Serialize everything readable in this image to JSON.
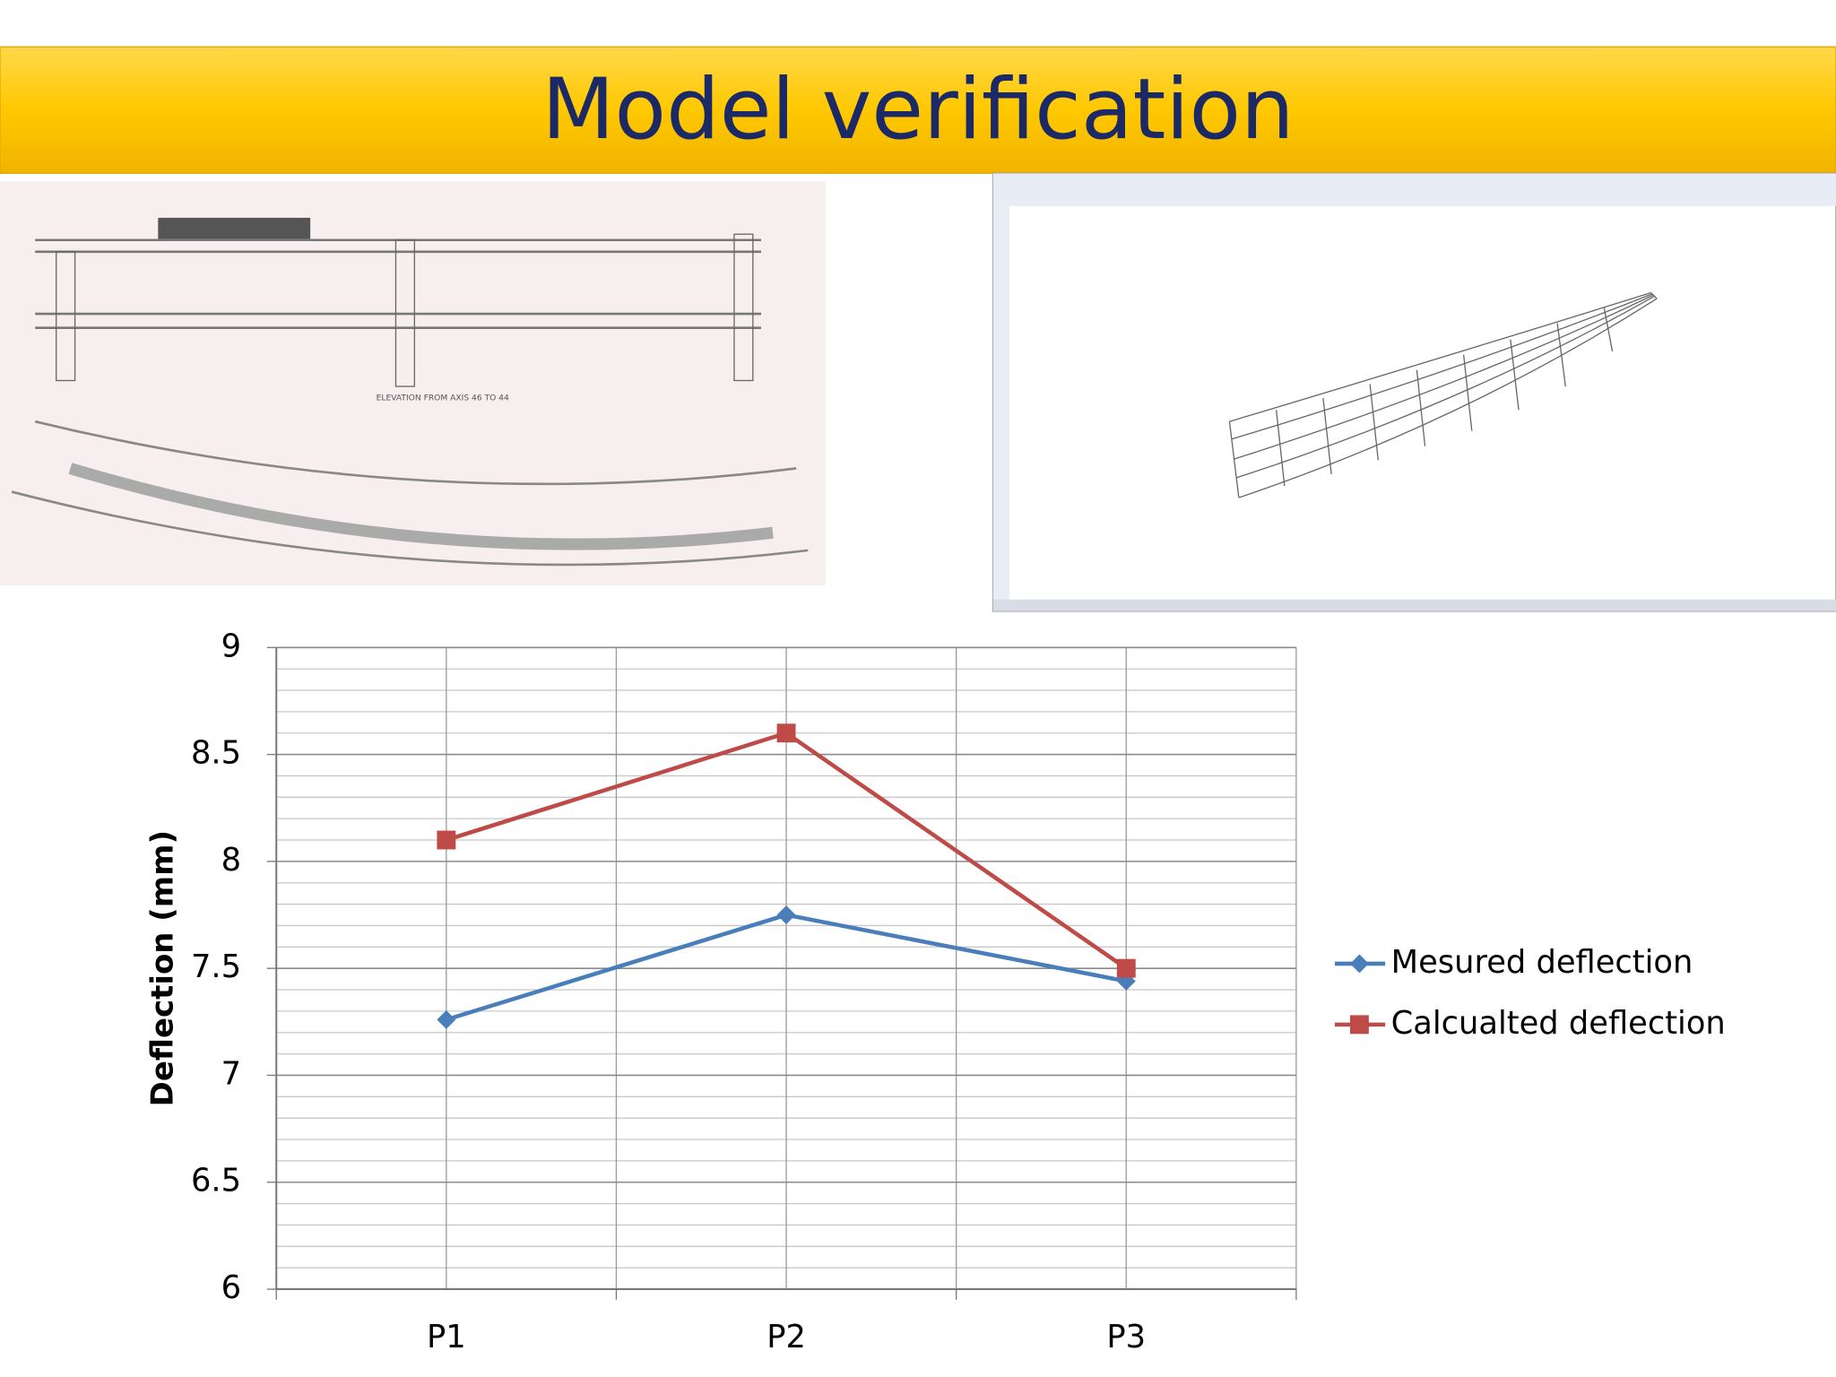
{
  "slide": {
    "title": "Model verification"
  },
  "chart_data": {
    "type": "line",
    "y_label": "Deflection (mm)",
    "categories": [
      "P1",
      "P2",
      "P3"
    ],
    "series": [
      {
        "name": "Mesured deflection",
        "color": "#4a7ebb",
        "marker": "diamond",
        "values": [
          7.26,
          7.75,
          7.44
        ]
      },
      {
        "name": "Calcualted deflection",
        "color": "#be4b48",
        "marker": "square",
        "values": [
          8.1,
          8.6,
          7.5
        ]
      }
    ],
    "ylim": [
      6,
      9
    ],
    "yticks": [
      6,
      6.5,
      7,
      7.5,
      8,
      8.5,
      9
    ],
    "grid": true,
    "minor_grid": 5,
    "legend": "right"
  }
}
